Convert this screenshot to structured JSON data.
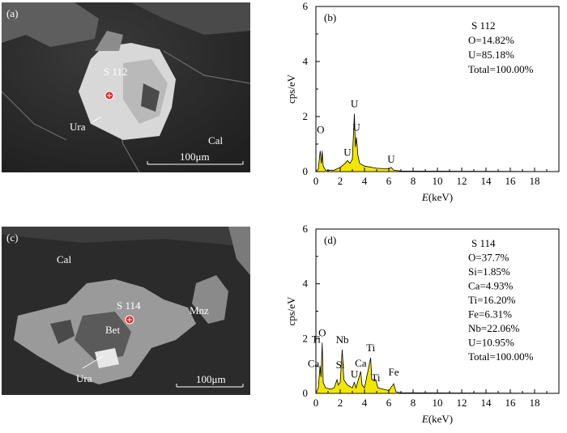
{
  "sem_images": [
    {
      "panel_label": "(a)",
      "labels": {
        "spot": "S 112",
        "mineral": "Ura",
        "matrix": "Cal"
      },
      "scale_bar": "100μm"
    },
    {
      "panel_label": "(c)",
      "labels": {
        "matrix": "Cal",
        "spot": "S 114",
        "mineral": "Bet",
        "mineral2": "Mnz",
        "mineral3": "Ura"
      },
      "scale_bar": "100μm"
    }
  ],
  "chart_data": [
    {
      "type": "area",
      "panel_label": "(b)",
      "spot": "S 112",
      "composition": [
        "O=14.82%",
        "U=85.18%",
        "Total=100.00%"
      ],
      "xlabel_italic": "E",
      "xlabel_rest": "(keV)",
      "ylabel": "cps/eV",
      "xlim": [
        0,
        20
      ],
      "ylim": [
        0,
        6
      ],
      "xticks": [
        0,
        2,
        4,
        6,
        8,
        10,
        12,
        14,
        16,
        18
      ],
      "yticks": [
        0,
        2,
        4,
        6
      ],
      "fill_color": "#f2e600",
      "grid": false,
      "spectrum": [
        [
          0,
          0
        ],
        [
          0.2,
          0.1
        ],
        [
          0.35,
          0.75
        ],
        [
          0.45,
          0.3
        ],
        [
          0.52,
          0.75
        ],
        [
          0.6,
          0.2
        ],
        [
          0.8,
          0.05
        ],
        [
          1.5,
          0.05
        ],
        [
          2.0,
          0.15
        ],
        [
          2.4,
          0.3
        ],
        [
          2.6,
          0.4
        ],
        [
          2.8,
          0.3
        ],
        [
          3.0,
          0.45
        ],
        [
          3.17,
          2.1
        ],
        [
          3.25,
          0.9
        ],
        [
          3.34,
          1.25
        ],
        [
          3.45,
          0.6
        ],
        [
          3.6,
          0.3
        ],
        [
          4.0,
          0.2
        ],
        [
          5.0,
          0.12
        ],
        [
          6.0,
          0.1
        ],
        [
          6.2,
          0.15
        ],
        [
          6.4,
          0.05
        ],
        [
          7.0,
          0.02
        ],
        [
          20,
          0
        ]
      ],
      "peaks": [
        {
          "label": "O",
          "x": 0.52,
          "y": 0.75
        },
        {
          "label": "U",
          "x": 2.6,
          "y": 0.4
        },
        {
          "label": "U",
          "x": 3.17,
          "y": 2.1
        },
        {
          "label": "U",
          "x": 3.34,
          "y": 1.25
        },
        {
          "label": "U",
          "x": 6.2,
          "y": 0.15
        }
      ]
    },
    {
      "type": "area",
      "panel_label": "(d)",
      "spot": "S 114",
      "composition": [
        "O=37.7%",
        "Si=1.85%",
        "Ca=4.93%",
        "Ti=16.20%",
        "Fe=6.31%",
        "Nb=22.06%",
        "U=10.95%",
        "Total=100.00%"
      ],
      "xlabel_italic": "E",
      "xlabel_rest": "(keV)",
      "ylabel": "cps/eV",
      "xlim": [
        0,
        20
      ],
      "ylim": [
        0,
        6
      ],
      "xticks": [
        0,
        2,
        4,
        6,
        8,
        10,
        12,
        14,
        16,
        18
      ],
      "yticks": [
        0,
        2,
        4,
        6
      ],
      "fill_color": "#f2e600",
      "grid": false,
      "spectrum": [
        [
          0,
          0
        ],
        [
          0.2,
          0.2
        ],
        [
          0.34,
          1.0
        ],
        [
          0.42,
          0.6
        ],
        [
          0.52,
          1.85
        ],
        [
          0.6,
          0.4
        ],
        [
          0.8,
          0.2
        ],
        [
          1.2,
          0.15
        ],
        [
          1.5,
          0.2
        ],
        [
          1.74,
          0.5
        ],
        [
          1.85,
          0.3
        ],
        [
          2.0,
          0.4
        ],
        [
          2.17,
          1.6
        ],
        [
          2.3,
          0.5
        ],
        [
          2.6,
          0.3
        ],
        [
          3.0,
          0.2
        ],
        [
          3.17,
          0.4
        ],
        [
          3.3,
          0.2
        ],
        [
          3.69,
          0.8
        ],
        [
          3.8,
          0.3
        ],
        [
          4.0,
          0.2
        ],
        [
          4.51,
          1.3
        ],
        [
          4.6,
          0.5
        ],
        [
          4.93,
          0.5
        ],
        [
          5.1,
          0.2
        ],
        [
          6.0,
          0.1
        ],
        [
          6.4,
          0.35
        ],
        [
          6.6,
          0.05
        ],
        [
          7.0,
          0.02
        ],
        [
          20,
          0
        ]
      ],
      "peaks": [
        {
          "label": "Ti",
          "x": 0.42,
          "y": 0.9
        },
        {
          "label": "O",
          "x": 0.52,
          "y": 1.85
        },
        {
          "label": "Ca",
          "x": 0.34,
          "y": 0.6
        },
        {
          "label": "Si",
          "x": 1.74,
          "y": 0.5
        },
        {
          "label": "Nb",
          "x": 2.17,
          "y": 1.6
        },
        {
          "label": "U",
          "x": 3.17,
          "y": 0.4
        },
        {
          "label": "Ca",
          "x": 3.69,
          "y": 0.8
        },
        {
          "label": "Ti",
          "x": 4.51,
          "y": 1.3
        },
        {
          "label": "Ti",
          "x": 4.93,
          "y": 0.5
        },
        {
          "label": "Fe",
          "x": 6.4,
          "y": 0.35
        }
      ]
    }
  ]
}
